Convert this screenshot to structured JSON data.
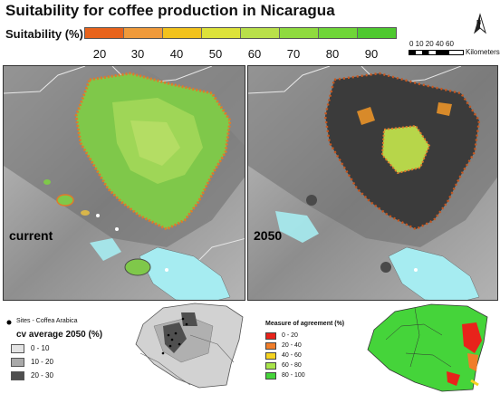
{
  "title": "Suitability for coffee production in Nicaragua",
  "suitability_legend": {
    "label": "Suitability (%)",
    "ticks": [
      "20",
      "30",
      "40",
      "50",
      "60",
      "70",
      "80",
      "90"
    ],
    "colors": [
      "#e8631b",
      "#f09a3a",
      "#f2c21c",
      "#dde23a",
      "#b9e04a",
      "#8fdb3f",
      "#6fd638",
      "#4ec92f"
    ]
  },
  "compass": {
    "label": "N",
    "icon": "north-arrow-icon"
  },
  "scale": {
    "numbers": "0 10 20     40     60",
    "unit": "Kilometers"
  },
  "panels": {
    "left_label": "current",
    "right_label": "2050"
  },
  "inset_cv": {
    "sites_label": "Sites - Coffea Arabica",
    "title": "cv average 2050 (%)",
    "classes": [
      {
        "label": "0 - 10",
        "color": "#e3e3e3"
      },
      {
        "label": "10 - 20",
        "color": "#a9a9a9"
      },
      {
        "label": "20 - 30",
        "color": "#4f4f4f"
      }
    ]
  },
  "inset_agreement": {
    "title": "Measure of agreement (%)",
    "classes": [
      {
        "label": "0 - 20",
        "color": "#e8231b"
      },
      {
        "label": "20 - 40",
        "color": "#f07d2a"
      },
      {
        "label": "40 - 60",
        "color": "#f5d320"
      },
      {
        "label": "60 - 80",
        "color": "#a8e44a"
      },
      {
        "label": "80 - 100",
        "color": "#45d43a"
      }
    ]
  },
  "colors": {
    "water": "#a6ecf1",
    "terrain": "#9a9a9a",
    "dark_terrain": "#3b3b3b"
  }
}
